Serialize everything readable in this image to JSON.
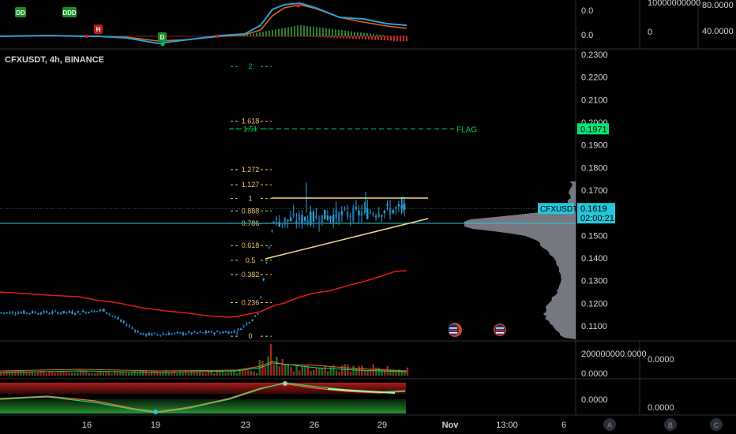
{
  "symbol_header": "CFXUSDT, 4h, BINANCE",
  "colors": {
    "background": "#000000",
    "bull": "#2a9fd6",
    "bear": "#2a9fd6",
    "red_line": "#e01b1b",
    "fib_gold": "#f0c36a",
    "flag_green": "#00c853",
    "price_line": "#26c6da"
  },
  "top_oscillator": {
    "markers": [
      "DD",
      "DDD",
      "H",
      "D"
    ],
    "scale_left": [
      "0.0",
      "0.0"
    ],
    "scale_mid": [
      "10000000000",
      "0"
    ],
    "scale_right": [
      "80.0000",
      "40.0000"
    ]
  },
  "fib_levels": [
    {
      "label": "2",
      "price": 0.2247,
      "color": "#00c853"
    },
    {
      "label": "1.618",
      "price": 0.2005,
      "color": "#f0c36a"
    },
    {
      "label": "1.51",
      "price": 0.1971,
      "color": "#00c853"
    },
    {
      "label": "1.272",
      "price": 0.1791,
      "color": "#f0c36a"
    },
    {
      "label": "1.127",
      "price": 0.1724,
      "color": "#f0c36a"
    },
    {
      "label": "1",
      "price": 0.1663,
      "color": "#f0c36a"
    },
    {
      "label": "0.888",
      "price": 0.1608,
      "color": "#f0c36a"
    },
    {
      "label": "0.786",
      "price": 0.1553,
      "color": "#f0c36a"
    },
    {
      "label": "0.618",
      "price": 0.1455,
      "color": "#f0c36a"
    },
    {
      "label": "0.5",
      "price": 0.139,
      "color": "#f0c36a"
    },
    {
      "label": "0.382",
      "price": 0.1327,
      "color": "#f0c36a"
    },
    {
      "label": "0.236",
      "price": 0.1203,
      "color": "#f0c36a"
    },
    {
      "label": "0",
      "price": 0.1054,
      "color": "#f0c36a"
    }
  ],
  "flag_label": "FLAG",
  "flag_price_tag": "0.1971",
  "price_scale": [
    "0.2300",
    "0.2200",
    "0.2100",
    "0.2000",
    "0.1900",
    "0.1800",
    "0.1700",
    "0.1600",
    "0.1500",
    "0.1400",
    "0.1300",
    "0.1200",
    "0.1100"
  ],
  "current_price": {
    "symbol_tag": "CFXUSDT",
    "price": "0.1619",
    "countdown": "02:00:21"
  },
  "volume_pane": {
    "scale": [
      "200000000.0000",
      "0.0000"
    ],
    "mid_value": "0.0000"
  },
  "bottom_pane": {
    "scale": [
      "0.0000"
    ],
    "mid_value": "0.0000"
  },
  "time_axis": [
    "16",
    "19",
    "23",
    "26",
    "29",
    "Nov",
    "13:00",
    "6"
  ],
  "circle_buttons": [
    "A",
    "B",
    "C"
  ]
}
